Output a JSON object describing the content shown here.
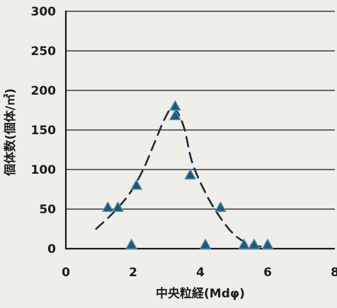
{
  "chart_data": {
    "type": "scatter",
    "xlabel": "中央粒経(Mdφ)",
    "ylabel": "個体数(個体/㎡)",
    "xlim": [
      0,
      8
    ],
    "ylim": [
      0,
      300
    ],
    "xticks": [
      "0",
      "2",
      "4",
      "6",
      "8"
    ],
    "yticks": [
      "0",
      "50",
      "100",
      "150",
      "200",
      "250",
      "300"
    ],
    "grid": "horizontal",
    "series": [
      {
        "marker": "triangle",
        "points": [
          {
            "x": 1.25,
            "y": 52
          },
          {
            "x": 1.55,
            "y": 52
          },
          {
            "x": 1.95,
            "y": 5
          },
          {
            "x": 2.1,
            "y": 80
          },
          {
            "x": 3.25,
            "y": 180
          },
          {
            "x": 3.25,
            "y": 168
          },
          {
            "x": 3.7,
            "y": 93
          },
          {
            "x": 4.15,
            "y": 5
          },
          {
            "x": 4.6,
            "y": 52
          },
          {
            "x": 5.3,
            "y": 5
          },
          {
            "x": 5.6,
            "y": 5
          },
          {
            "x": 6.0,
            "y": 5
          }
        ]
      }
    ],
    "trend_curve": {
      "style": "dashed",
      "points": [
        {
          "x": 0.9,
          "y": 25
        },
        {
          "x": 1.4,
          "y": 45
        },
        {
          "x": 1.9,
          "y": 70
        },
        {
          "x": 2.3,
          "y": 100
        },
        {
          "x": 2.6,
          "y": 130
        },
        {
          "x": 2.95,
          "y": 165
        },
        {
          "x": 3.2,
          "y": 178
        },
        {
          "x": 3.5,
          "y": 155
        },
        {
          "x": 3.75,
          "y": 110
        },
        {
          "x": 4.1,
          "y": 75
        },
        {
          "x": 4.5,
          "y": 45
        },
        {
          "x": 5.0,
          "y": 18
        },
        {
          "x": 5.5,
          "y": 5
        },
        {
          "x": 6.0,
          "y": 2
        }
      ]
    },
    "colors": {
      "background": "#efeee9",
      "plot_background": "#efeee9",
      "axis": "#1a1a1a",
      "gridline": "#3a3a3a",
      "marker_fill": "#1f5a78",
      "marker_edge": "#5c99b5",
      "curve": "#1e2c3a",
      "text": "#1d1d1d"
    }
  }
}
